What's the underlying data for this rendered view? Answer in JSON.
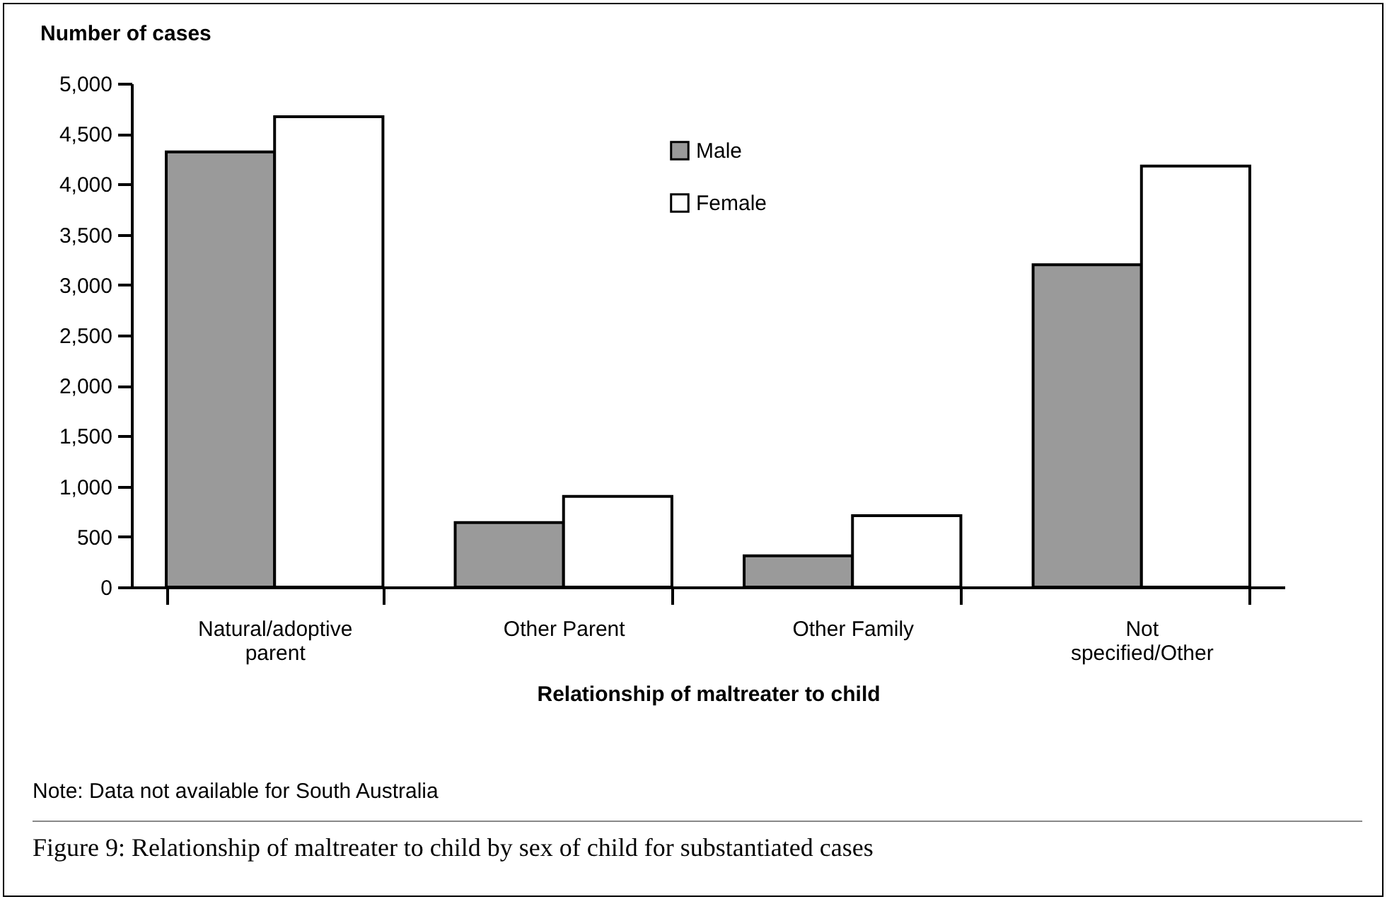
{
  "chart_data": {
    "type": "bar",
    "xlabel": "Relationship of maltreater to child",
    "ylabel": "Number of cases",
    "categories": [
      "Natural/adoptive parent",
      "Other Parent",
      "Other Family",
      "Not specified/Other"
    ],
    "series": [
      {
        "name": "Male",
        "color": "#9a9a9a",
        "values": [
          4320,
          640,
          310,
          3200
        ]
      },
      {
        "name": "Female",
        "color": "#ffffff",
        "values": [
          4670,
          900,
          710,
          4180
        ]
      }
    ],
    "ylim": [
      0,
      5000
    ],
    "yticks": [
      0,
      {
        "value": 500,
        "label": "500"
      },
      {
        "value": 1000,
        "label": "1,000"
      },
      {
        "value": 1500,
        "label": "1,500"
      },
      {
        "value": 2000,
        "label": "2,000"
      },
      {
        "value": 2500,
        "label": "2,500"
      },
      {
        "value": 3000,
        "label": "3,000"
      },
      {
        "value": 3500,
        "label": "3,500"
      },
      {
        "value": 4000,
        "label": "4,000"
      },
      {
        "value": 4500,
        "label": "4,500"
      },
      {
        "value": 5000,
        "label": "5,000"
      }
    ],
    "legend": "top",
    "grid": false,
    "annotations": [
      "Note: Data not available for South Australia",
      "Figure 9: Relationship of maltreater to child by sex of child for substantiated cases"
    ]
  }
}
